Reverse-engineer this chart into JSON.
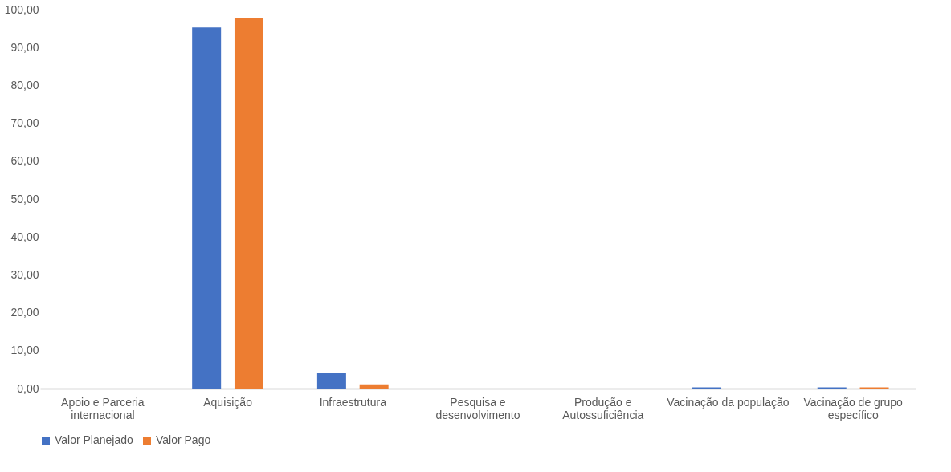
{
  "chart_data": {
    "type": "bar",
    "categories": [
      "Apoio e Parceria internacional",
      "Aquisição",
      "Infraestrutura",
      "Pesquisa e desenvolvimento",
      "Produção e Autossuficiência",
      "Vacinação da população",
      "Vacinação de grupo específico"
    ],
    "series": [
      {
        "name": "Valor Planejado",
        "color": "#4472c4",
        "values": [
          0,
          95.3,
          4.0,
          0,
          0,
          0.3,
          0.3
        ]
      },
      {
        "name": "Valor Pago",
        "color": "#ed7d31",
        "values": [
          0,
          97.9,
          1.1,
          0,
          0,
          0,
          0.3
        ]
      }
    ],
    "ylim": [
      0,
      100
    ],
    "yticks": [
      {
        "value": 0,
        "label": "0,00"
      },
      {
        "value": 10,
        "label": "10,00"
      },
      {
        "value": 20,
        "label": "20,00"
      },
      {
        "value": 30,
        "label": "30,00"
      },
      {
        "value": 40,
        "label": "40,00"
      },
      {
        "value": 50,
        "label": "50,00"
      },
      {
        "value": 60,
        "label": "60,00"
      },
      {
        "value": 70,
        "label": "70,00"
      },
      {
        "value": 80,
        "label": "80,00"
      },
      {
        "value": 90,
        "label": "90,00"
      },
      {
        "value": 100,
        "label": "100,00"
      }
    ],
    "grid": false,
    "legend": "bottom"
  }
}
